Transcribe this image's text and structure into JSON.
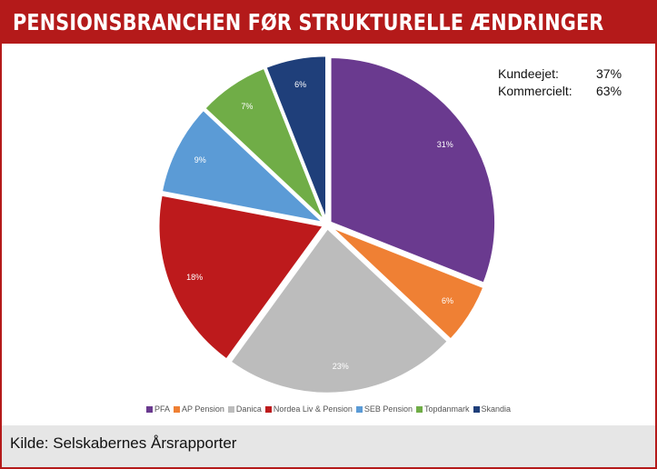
{
  "title": "PENSIONSBRANCHEN FØR STRUKTURELLE ÆNDRINGER",
  "source": "Kilde: Selskabernes Årsrapporter",
  "ownership": [
    {
      "label": "Kundeejet:",
      "value": "37%"
    },
    {
      "label": "Kommercielt:",
      "value": "63%"
    }
  ],
  "colors": {
    "brand": "#b41a1a",
    "footer": "#e6e6e6"
  },
  "chart_data": {
    "type": "pie",
    "title": "",
    "start_angle_deg": 0,
    "direction": "clockwise",
    "legend_position": "bottom",
    "slices": [
      {
        "label": "PFA",
        "value": 31,
        "display": "31%",
        "color": "#6a3a8f"
      },
      {
        "label": "AP Pension",
        "value": 6,
        "display": "6%",
        "color": "#ef8034"
      },
      {
        "label": "Danica",
        "value": 23,
        "display": "23%",
        "color": "#bcbcbc"
      },
      {
        "label": "Nordea Liv & Pension",
        "value": 18,
        "display": "18%",
        "color": "#bd1a1c"
      },
      {
        "label": "SEB Pension",
        "value": 9,
        "display": "9%",
        "color": "#5b9bd6"
      },
      {
        "label": "Topdanmark",
        "value": 7,
        "display": "7%",
        "color": "#70ad47"
      },
      {
        "label": "Skandia",
        "value": 6,
        "display": "6%",
        "color": "#1f3f7a"
      }
    ]
  }
}
